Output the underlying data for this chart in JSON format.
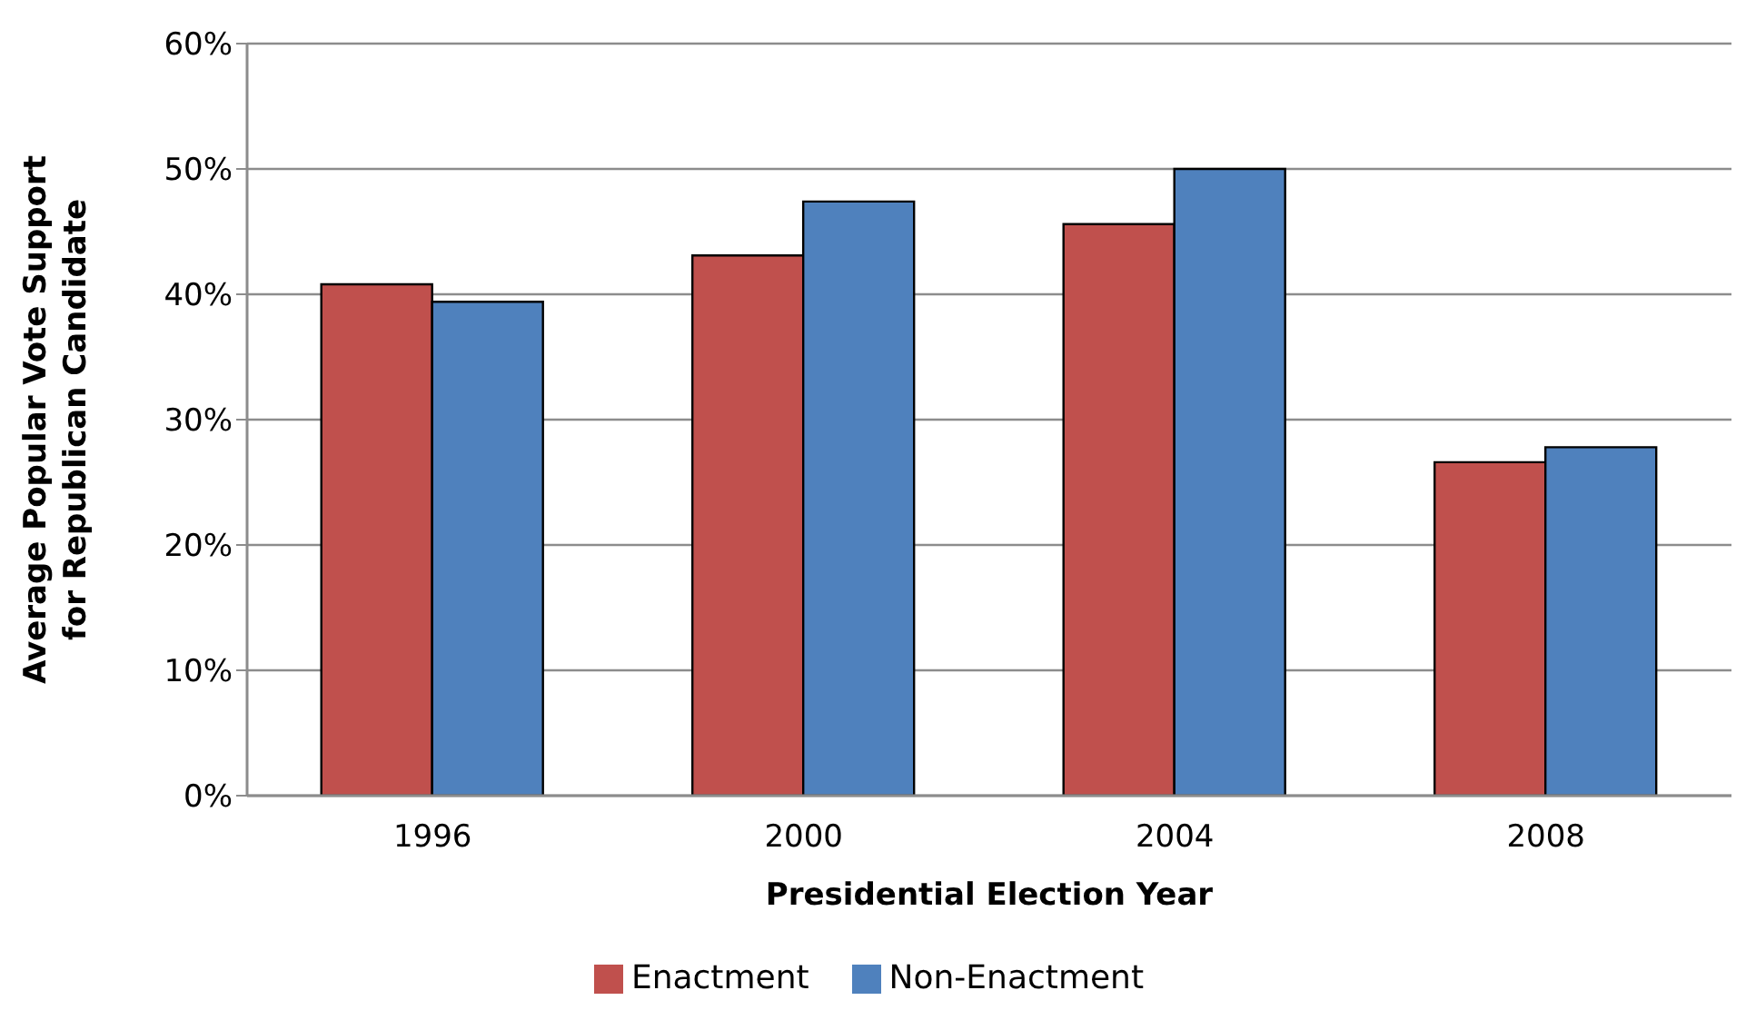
{
  "chart_data": {
    "type": "bar",
    "xlabel": "Presidential Election Year",
    "ylabel": "Average Popular Vote Support\nfor Republican Candidate",
    "categories": [
      "1996",
      "2000",
      "2004",
      "2008"
    ],
    "series": [
      {
        "name": "Enactment",
        "color": "#c0504d",
        "values": [
          40.8,
          43.1,
          45.6,
          26.6
        ]
      },
      {
        "name": "Non-Enactment",
        "color": "#4f81bd",
        "values": [
          39.4,
          47.4,
          50.0,
          27.8
        ]
      }
    ],
    "ylim": [
      0,
      60
    ],
    "yticks": [
      {
        "value": 0,
        "label": "0%"
      },
      {
        "value": 10,
        "label": "10%"
      },
      {
        "value": 20,
        "label": "20%"
      },
      {
        "value": 30,
        "label": "30%"
      },
      {
        "value": 40,
        "label": "40%"
      },
      {
        "value": 50,
        "label": "50%"
      },
      {
        "value": 60,
        "label": "60%"
      }
    ],
    "grid": "y",
    "legend": "bottom"
  }
}
